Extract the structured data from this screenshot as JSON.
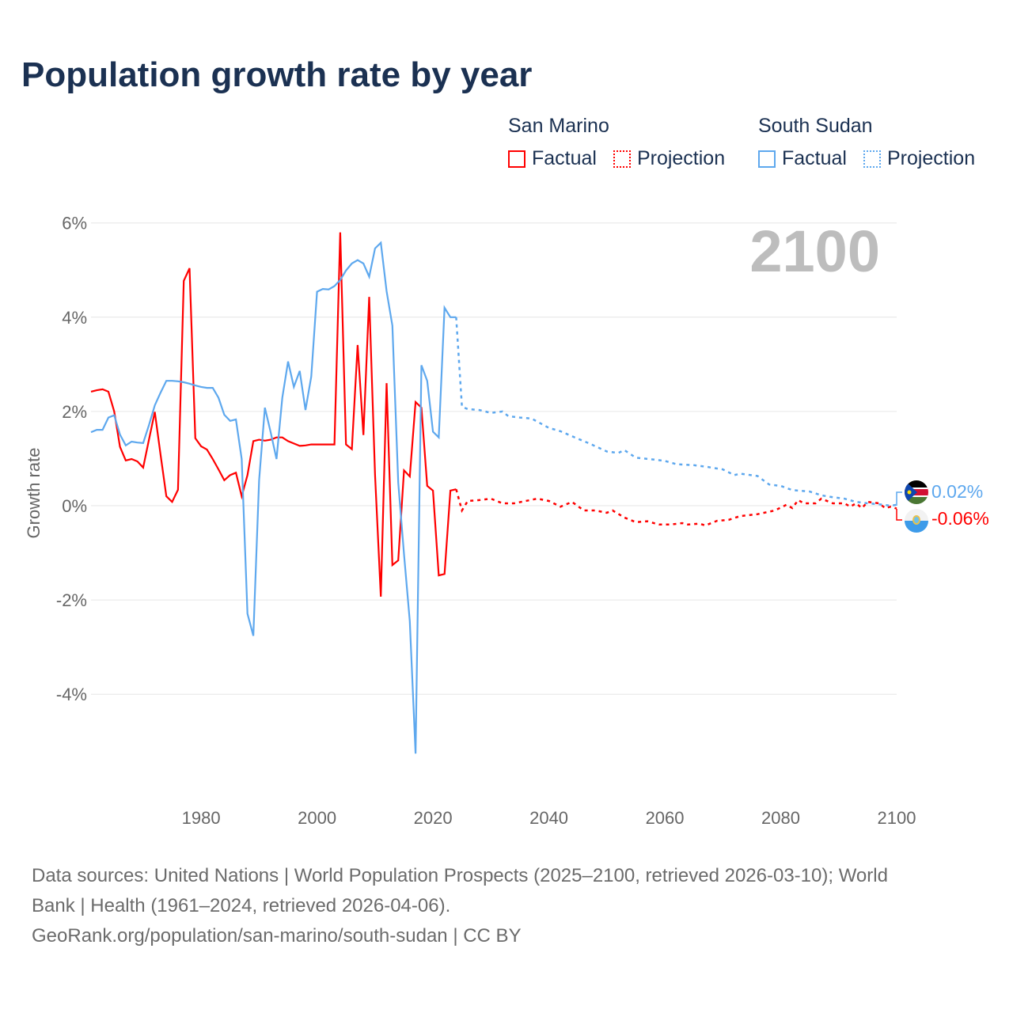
{
  "title": "Population growth rate by year",
  "legend": {
    "groups": [
      {
        "name": "San Marino",
        "factual": "Factual",
        "projection": "Projection",
        "color": "#ff0000"
      },
      {
        "name": "South Sudan",
        "factual": "Factual",
        "projection": "Projection",
        "color": "#5ea8ee"
      }
    ]
  },
  "year_display": "2100",
  "end_labels": {
    "south_sudan": "0.02%",
    "san_marino": "-0.06%"
  },
  "sources": {
    "line1": "Data sources: United Nations | World Population Prospects (2025–2100, retrieved 2026-03-10); World",
    "line2": "Bank | Health (1961–2024, retrieved 2026-04-06).",
    "line3": "GeoRank.org/population/san-marino/south-sudan | CC BY"
  },
  "chart_data": {
    "type": "line",
    "title": "Population growth rate by year",
    "xlabel": "",
    "ylabel": "Growth rate",
    "xlim": [
      1961,
      2100
    ],
    "ylim": [
      -6,
      6.2
    ],
    "x_ticks": [
      1980,
      2000,
      2020,
      2040,
      2060,
      2080,
      2100
    ],
    "y_ticks": [
      {
        "v": 6,
        "label": "6%"
      },
      {
        "v": 4,
        "label": "4%"
      },
      {
        "v": 2,
        "label": "2%"
      },
      {
        "v": 0,
        "label": "0%"
      },
      {
        "v": -2,
        "label": "-2%"
      },
      {
        "v": -4,
        "label": "-4%"
      }
    ],
    "grid": true,
    "legend_position": "top-right",
    "series": [
      {
        "name": "San Marino",
        "color": "#ff0000",
        "factual_start": 1961,
        "factual": [
          2.42,
          2.45,
          2.47,
          2.42,
          2.0,
          1.25,
          0.96,
          0.99,
          0.94,
          0.81,
          1.4,
          1.99,
          1.08,
          0.2,
          0.08,
          0.34,
          4.77,
          5.04,
          1.43,
          1.26,
          1.19,
          0.99,
          0.77,
          0.54,
          0.65,
          0.7,
          0.2,
          0.65,
          1.37,
          1.4,
          1.38,
          1.4,
          1.45,
          1.45,
          1.37,
          1.32,
          1.27,
          1.28,
          1.3,
          1.3,
          1.3,
          1.3,
          1.3,
          5.8,
          1.3,
          1.2,
          3.41,
          1.5,
          4.43,
          0.65,
          -1.93,
          2.6,
          -1.26,
          -1.16,
          0.75,
          0.62,
          2.2,
          2.08,
          0.42,
          0.32,
          -1.48,
          -1.45,
          0.32,
          0.35
        ],
        "projection": [
          [
            2024,
            0.35
          ],
          [
            2025,
            -0.1
          ],
          [
            2026,
            0.1
          ],
          [
            2028,
            0.12
          ],
          [
            2030,
            0.15
          ],
          [
            2032,
            0.05
          ],
          [
            2034,
            0.05
          ],
          [
            2036,
            0.1
          ],
          [
            2038,
            0.15
          ],
          [
            2040,
            0.1
          ],
          [
            2042,
            -0.02
          ],
          [
            2044,
            0.08
          ],
          [
            2046,
            -0.1
          ],
          [
            2048,
            -0.1
          ],
          [
            2050,
            -0.15
          ],
          [
            2051,
            -0.1
          ],
          [
            2053,
            -0.25
          ],
          [
            2055,
            -0.35
          ],
          [
            2057,
            -0.33
          ],
          [
            2059,
            -0.4
          ],
          [
            2061,
            -0.4
          ],
          [
            2063,
            -0.37
          ],
          [
            2064,
            -0.4
          ],
          [
            2066,
            -0.38
          ],
          [
            2067,
            -0.42
          ],
          [
            2069,
            -0.32
          ],
          [
            2071,
            -0.3
          ],
          [
            2073,
            -0.22
          ],
          [
            2076,
            -0.18
          ],
          [
            2079,
            -0.1
          ],
          [
            2081,
            0.02
          ],
          [
            2082,
            -0.05
          ],
          [
            2083,
            0.12
          ],
          [
            2084,
            0.05
          ],
          [
            2086,
            0.05
          ],
          [
            2087,
            0.15
          ],
          [
            2089,
            0.05
          ],
          [
            2091,
            0.05
          ],
          [
            2092,
            -0.02
          ],
          [
            2093,
            0.05
          ],
          [
            2094,
            -0.05
          ],
          [
            2095,
            0.08
          ],
          [
            2097,
            0.05
          ],
          [
            2098,
            -0.05
          ],
          [
            2099,
            -0.02
          ],
          [
            2100,
            -0.06
          ]
        ]
      },
      {
        "name": "South Sudan",
        "color": "#5ea8ee",
        "factual_start": 1961,
        "factual": [
          1.56,
          1.61,
          1.61,
          1.87,
          1.92,
          1.51,
          1.28,
          1.36,
          1.34,
          1.33,
          1.71,
          2.13,
          2.4,
          2.65,
          2.65,
          2.64,
          2.62,
          2.59,
          2.55,
          2.52,
          2.5,
          2.5,
          2.29,
          1.93,
          1.8,
          1.83,
          0.99,
          -2.29,
          -2.76,
          0.54,
          2.08,
          1.56,
          0.99,
          2.29,
          3.06,
          2.52,
          2.86,
          2.03,
          2.74,
          4.54,
          4.6,
          4.59,
          4.66,
          4.79,
          4.99,
          5.14,
          5.21,
          5.14,
          4.86,
          5.46,
          5.58,
          4.55,
          3.82,
          0.49,
          -1.03,
          -2.45,
          -5.26,
          2.98,
          2.65,
          1.57,
          1.45,
          4.2,
          4.0,
          4.0
        ],
        "projection": [
          [
            2024,
            4.0
          ],
          [
            2025,
            2.1
          ],
          [
            2026,
            2.05
          ],
          [
            2028,
            2.03
          ],
          [
            2030,
            1.97
          ],
          [
            2032,
            2.0
          ],
          [
            2033,
            1.9
          ],
          [
            2035,
            1.87
          ],
          [
            2037,
            1.85
          ],
          [
            2040,
            1.65
          ],
          [
            2042,
            1.58
          ],
          [
            2045,
            1.42
          ],
          [
            2047,
            1.32
          ],
          [
            2050,
            1.15
          ],
          [
            2052,
            1.12
          ],
          [
            2053,
            1.18
          ],
          [
            2055,
            1.02
          ],
          [
            2058,
            0.98
          ],
          [
            2060,
            0.95
          ],
          [
            2062,
            0.88
          ],
          [
            2065,
            0.86
          ],
          [
            2067,
            0.83
          ],
          [
            2070,
            0.77
          ],
          [
            2072,
            0.65
          ],
          [
            2073,
            0.68
          ],
          [
            2076,
            0.63
          ],
          [
            2078,
            0.45
          ],
          [
            2080,
            0.42
          ],
          [
            2082,
            0.33
          ],
          [
            2085,
            0.3
          ],
          [
            2087,
            0.22
          ],
          [
            2089,
            0.18
          ],
          [
            2091,
            0.15
          ],
          [
            2093,
            0.08
          ],
          [
            2095,
            0.05
          ],
          [
            2097,
            0.03
          ],
          [
            2099,
            0.0
          ],
          [
            2100,
            0.02
          ]
        ]
      }
    ]
  }
}
